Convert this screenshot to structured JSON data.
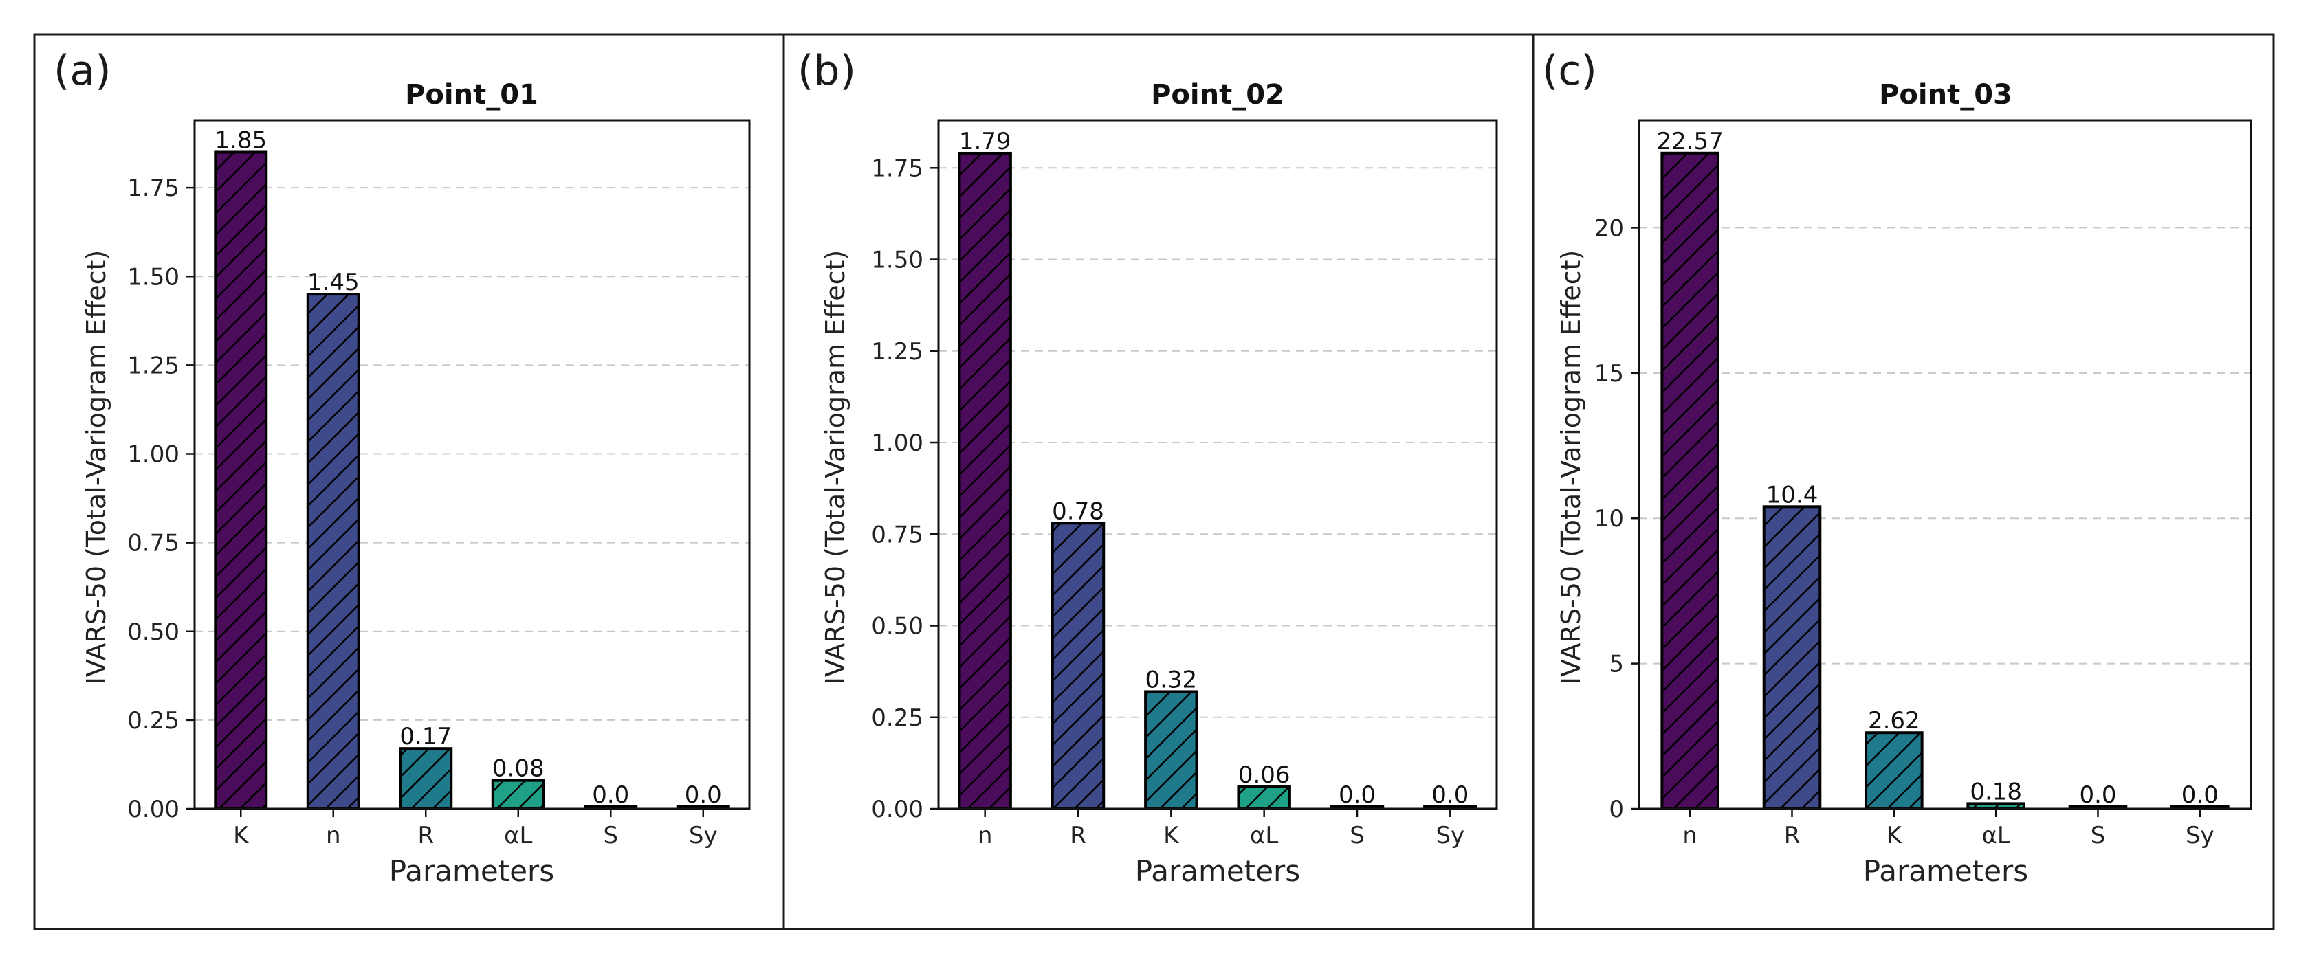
{
  "figure": {
    "panel_colors": [
      "#4a0c5b",
      "#3f4a8a",
      "#1f7a8c",
      "#1fa187",
      "#2a2a2a",
      "#2a2a2a"
    ]
  },
  "chart_data": [
    {
      "type": "bar",
      "panel_label": "(a)",
      "title": "Point_01",
      "xlabel": "Parameters",
      "ylabel": "IVARS-50 (Total-Variogram Effect)",
      "categories": [
        "K",
        "n",
        "R",
        "αL",
        "S",
        "Sy"
      ],
      "values": [
        1.85,
        1.45,
        0.17,
        0.08,
        0.0,
        0.0
      ],
      "value_labels": [
        "1.85",
        "1.45",
        "0.17",
        "0.08",
        "0.0",
        "0.0"
      ],
      "ylim": [
        0,
        1.94
      ],
      "yticks": [
        0.0,
        0.25,
        0.5,
        0.75,
        1.0,
        1.25,
        1.5,
        1.75
      ],
      "ytick_labels": [
        "0.00",
        "0.25",
        "0.50",
        "0.75",
        "1.00",
        "1.25",
        "1.50",
        "1.75"
      ],
      "grid": "y-dashed",
      "hatch": "diagonal"
    },
    {
      "type": "bar",
      "panel_label": "(b)",
      "title": "Point_02",
      "xlabel": "Parameters",
      "ylabel": "IVARS-50 (Total-Variogram Effect)",
      "categories": [
        "n",
        "R",
        "K",
        "αL",
        "S",
        "Sy"
      ],
      "values": [
        1.79,
        0.78,
        0.32,
        0.06,
        0.0,
        0.0
      ],
      "value_labels": [
        "1.79",
        "0.78",
        "0.32",
        "0.06",
        "0.0",
        "0.0"
      ],
      "ylim": [
        0,
        1.88
      ],
      "yticks": [
        0.0,
        0.25,
        0.5,
        0.75,
        1.0,
        1.25,
        1.5,
        1.75
      ],
      "ytick_labels": [
        "0.00",
        "0.25",
        "0.50",
        "0.75",
        "1.00",
        "1.25",
        "1.50",
        "1.75"
      ],
      "grid": "y-dashed",
      "hatch": "diagonal"
    },
    {
      "type": "bar",
      "panel_label": "(c)",
      "title": "Point_03",
      "xlabel": "Parameters",
      "ylabel": "IVARS-50 (Total-Variogram Effect)",
      "categories": [
        "n",
        "R",
        "K",
        "αL",
        "S",
        "Sy"
      ],
      "values": [
        22.57,
        10.4,
        2.62,
        0.18,
        0.0,
        0.0
      ],
      "value_labels": [
        "22.57",
        "10.4",
        "2.62",
        "0.18",
        "0.0",
        "0.0"
      ],
      "ylim": [
        0,
        23.7
      ],
      "yticks": [
        0,
        5,
        10,
        15,
        20
      ],
      "ytick_labels": [
        "0",
        "5",
        "10",
        "15",
        "20"
      ],
      "grid": "y-dashed",
      "hatch": "diagonal"
    }
  ]
}
